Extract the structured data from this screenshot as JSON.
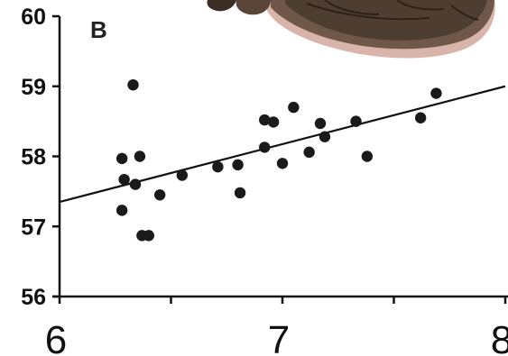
{
  "chart_data": {
    "type": "scatter",
    "panel_label": "B",
    "xlim": [
      6,
      8
    ],
    "ylim": [
      56,
      60
    ],
    "x_ticks": [
      6,
      7,
      8
    ],
    "x_tick_labels": [
      "6",
      "7",
      "8"
    ],
    "y_ticks": [
      56,
      57,
      58,
      59,
      60
    ],
    "y_tick_labels": [
      "56",
      "57",
      "58",
      "59",
      "60"
    ],
    "grid": false,
    "trendline": {
      "x": [
        6,
        8
      ],
      "y": [
        57.35,
        59.0
      ]
    },
    "points": [
      {
        "x": 6.33,
        "y": 59.02
      },
      {
        "x": 6.28,
        "y": 57.97
      },
      {
        "x": 6.36,
        "y": 58.0
      },
      {
        "x": 6.29,
        "y": 57.67
      },
      {
        "x": 6.34,
        "y": 57.6
      },
      {
        "x": 6.28,
        "y": 57.23
      },
      {
        "x": 6.37,
        "y": 56.87
      },
      {
        "x": 6.4,
        "y": 56.87
      },
      {
        "x": 6.45,
        "y": 57.45
      },
      {
        "x": 6.55,
        "y": 57.73
      },
      {
        "x": 6.71,
        "y": 57.85
      },
      {
        "x": 6.8,
        "y": 57.88
      },
      {
        "x": 6.81,
        "y": 57.48
      },
      {
        "x": 6.92,
        "y": 58.52
      },
      {
        "x": 6.96,
        "y": 58.49
      },
      {
        "x": 6.92,
        "y": 58.13
      },
      {
        "x": 7.0,
        "y": 57.9
      },
      {
        "x": 7.05,
        "y": 58.7
      },
      {
        "x": 7.12,
        "y": 58.06
      },
      {
        "x": 7.17,
        "y": 58.47
      },
      {
        "x": 7.19,
        "y": 58.28
      },
      {
        "x": 7.33,
        "y": 58.5
      },
      {
        "x": 7.38,
        "y": 58.0
      },
      {
        "x": 7.62,
        "y": 58.55
      },
      {
        "x": 7.69,
        "y": 58.9
      }
    ],
    "colors": {
      "point": "#1a1a1a",
      "axis": "#111111",
      "line": "#111111"
    }
  },
  "illustration": {
    "icon": "turtle-shell-icon"
  }
}
